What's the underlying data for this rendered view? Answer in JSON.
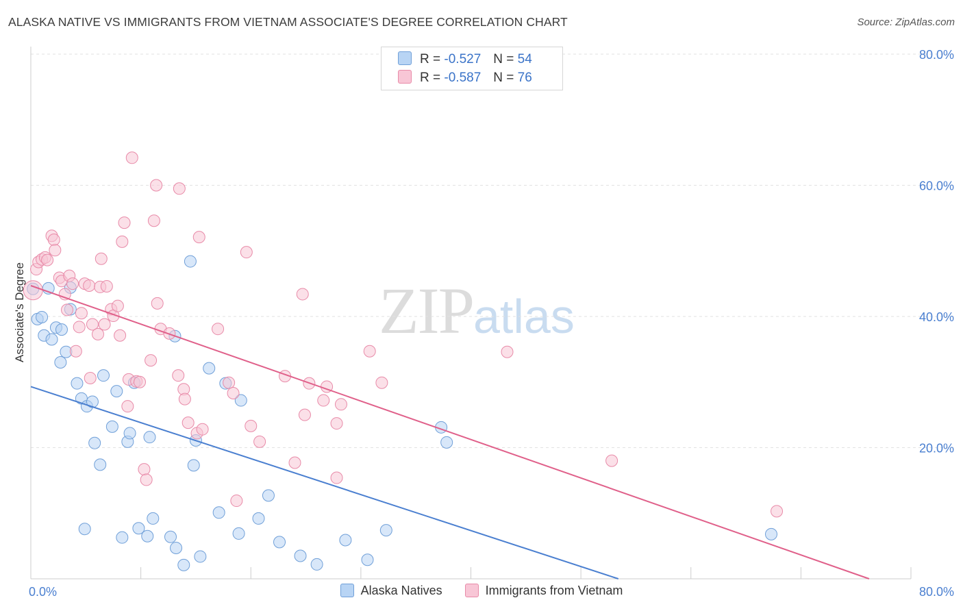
{
  "title": "ALASKA NATIVE VS IMMIGRANTS FROM VIETNAM ASSOCIATE'S DEGREE CORRELATION CHART",
  "source": "Source: ZipAtlas.com",
  "watermark": {
    "zip": "ZIP",
    "atlas": "atlas"
  },
  "legend": {
    "rows": [
      {
        "r_label": "R =",
        "r_value": "-0.527",
        "n_label": "N =",
        "n_value": "54",
        "fill": "#b8d4f4",
        "stroke": "#6f9fd8"
      },
      {
        "r_label": "R =",
        "r_value": "-0.587",
        "n_label": "N =",
        "n_value": "76",
        "fill": "#f8c6d6",
        "stroke": "#e88aa8"
      }
    ]
  },
  "chart_data": {
    "type": "scatter",
    "title": "ALASKA NATIVE VS IMMIGRANTS FROM VIETNAM ASSOCIATE'S DEGREE CORRELATION CHART",
    "xlabel": "",
    "ylabel": "Associate's Degree",
    "xlim": [
      0,
      80
    ],
    "ylim": [
      0,
      80
    ],
    "x_tick_labels": [
      "0.0%",
      "80.0%"
    ],
    "y_tick_labels": [
      "20.0%",
      "40.0%",
      "60.0%",
      "80.0%"
    ],
    "y_ticks": [
      20,
      40,
      60,
      80
    ],
    "grid": true,
    "legend_position": "bottom",
    "series": [
      {
        "name": "Alaska Natives",
        "color": "#4a7fd0",
        "fill": "#b8d4f4",
        "stroke": "#6f9fd8",
        "trend": {
          "x": [
            0,
            53.4
          ],
          "y": [
            29.3,
            0
          ]
        },
        "points": [
          [
            0.2,
            44.2
          ],
          [
            0.6,
            39.6
          ],
          [
            1.0,
            39.9
          ],
          [
            1.2,
            37.1
          ],
          [
            1.6,
            44.3
          ],
          [
            1.9,
            36.5
          ],
          [
            2.3,
            38.3
          ],
          [
            2.7,
            33.0
          ],
          [
            2.8,
            38.0
          ],
          [
            3.2,
            34.6
          ],
          [
            3.6,
            41.1
          ],
          [
            3.6,
            44.4
          ],
          [
            4.2,
            29.8
          ],
          [
            4.6,
            27.5
          ],
          [
            5.1,
            26.3
          ],
          [
            5.6,
            27.0
          ],
          [
            5.8,
            20.7
          ],
          [
            6.3,
            17.4
          ],
          [
            6.6,
            31.0
          ],
          [
            7.4,
            23.2
          ],
          [
            7.8,
            28.6
          ],
          [
            8.3,
            6.3
          ],
          [
            8.8,
            20.9
          ],
          [
            9.0,
            22.2
          ],
          [
            9.4,
            29.9
          ],
          [
            9.8,
            7.7
          ],
          [
            10.6,
            6.5
          ],
          [
            10.8,
            21.6
          ],
          [
            11.1,
            9.2
          ],
          [
            12.7,
            6.4
          ],
          [
            13.1,
            37.0
          ],
          [
            13.2,
            4.7
          ],
          [
            13.9,
            2.1
          ],
          [
            14.5,
            48.4
          ],
          [
            14.8,
            17.3
          ],
          [
            15.0,
            21.1
          ],
          [
            15.4,
            3.4
          ],
          [
            16.2,
            32.1
          ],
          [
            17.1,
            10.1
          ],
          [
            17.7,
            29.8
          ],
          [
            18.9,
            6.9
          ],
          [
            19.1,
            27.2
          ],
          [
            20.7,
            9.2
          ],
          [
            21.6,
            12.7
          ],
          [
            22.6,
            5.6
          ],
          [
            24.5,
            3.5
          ],
          [
            26.0,
            2.2
          ],
          [
            28.6,
            5.9
          ],
          [
            30.6,
            2.9
          ],
          [
            32.3,
            7.4
          ],
          [
            37.3,
            23.1
          ],
          [
            37.8,
            20.8
          ],
          [
            67.3,
            6.8
          ],
          [
            4.9,
            7.6
          ]
        ]
      },
      {
        "name": "Immigrants from Vietnam",
        "color": "#e0608a",
        "fill": "#f8c6d6",
        "stroke": "#e88aa8",
        "trend": {
          "x": [
            0,
            76.2
          ],
          "y": [
            44.7,
            0
          ]
        },
        "points": [
          [
            0.2,
            44.0
          ],
          [
            0.5,
            47.2
          ],
          [
            0.7,
            48.3
          ],
          [
            1.0,
            48.7
          ],
          [
            1.3,
            49.0
          ],
          [
            1.5,
            48.6
          ],
          [
            1.9,
            52.3
          ],
          [
            2.1,
            51.7
          ],
          [
            2.2,
            50.1
          ],
          [
            2.6,
            45.9
          ],
          [
            2.8,
            45.4
          ],
          [
            3.1,
            43.4
          ],
          [
            3.3,
            41.0
          ],
          [
            3.5,
            46.2
          ],
          [
            3.8,
            45.0
          ],
          [
            4.1,
            34.7
          ],
          [
            4.4,
            38.4
          ],
          [
            4.6,
            40.5
          ],
          [
            4.9,
            45.0
          ],
          [
            5.3,
            44.7
          ],
          [
            5.4,
            30.6
          ],
          [
            5.6,
            38.8
          ],
          [
            6.1,
            37.3
          ],
          [
            6.3,
            44.5
          ],
          [
            6.4,
            48.8
          ],
          [
            6.7,
            38.8
          ],
          [
            6.9,
            44.6
          ],
          [
            7.3,
            41.1
          ],
          [
            7.5,
            40.1
          ],
          [
            7.9,
            41.6
          ],
          [
            8.1,
            37.1
          ],
          [
            8.3,
            51.4
          ],
          [
            8.5,
            54.3
          ],
          [
            8.8,
            26.3
          ],
          [
            8.9,
            30.4
          ],
          [
            9.2,
            64.2
          ],
          [
            9.6,
            30.1
          ],
          [
            9.9,
            30.0
          ],
          [
            10.3,
            16.7
          ],
          [
            10.5,
            15.1
          ],
          [
            10.9,
            33.3
          ],
          [
            11.2,
            54.6
          ],
          [
            11.4,
            60.0
          ],
          [
            11.5,
            42.0
          ],
          [
            11.8,
            38.1
          ],
          [
            12.6,
            37.4
          ],
          [
            13.4,
            31.0
          ],
          [
            13.5,
            59.5
          ],
          [
            13.9,
            28.9
          ],
          [
            14.0,
            27.4
          ],
          [
            14.3,
            23.8
          ],
          [
            15.1,
            22.2
          ],
          [
            15.3,
            52.1
          ],
          [
            15.6,
            22.8
          ],
          [
            17.0,
            38.1
          ],
          [
            18.0,
            29.9
          ],
          [
            18.4,
            28.3
          ],
          [
            18.7,
            11.9
          ],
          [
            19.6,
            49.8
          ],
          [
            20.0,
            23.3
          ],
          [
            20.8,
            20.9
          ],
          [
            23.1,
            30.9
          ],
          [
            24.0,
            17.7
          ],
          [
            24.7,
            43.4
          ],
          [
            24.9,
            25.0
          ],
          [
            25.3,
            29.8
          ],
          [
            26.6,
            27.2
          ],
          [
            26.9,
            29.3
          ],
          [
            27.8,
            23.7
          ],
          [
            27.8,
            15.4
          ],
          [
            28.2,
            26.6
          ],
          [
            30.8,
            34.7
          ],
          [
            31.9,
            29.9
          ],
          [
            43.3,
            34.6
          ],
          [
            52.8,
            18.0
          ],
          [
            67.8,
            10.3
          ]
        ]
      }
    ]
  }
}
